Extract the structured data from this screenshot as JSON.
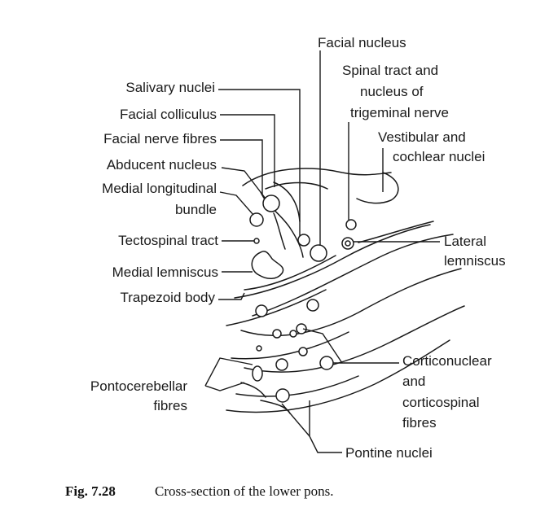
{
  "labels": {
    "facial_nucleus": "Facial nucleus",
    "spinal_tract_1": "Spinal tract and",
    "spinal_tract_2": "nucleus of",
    "spinal_tract_3": "trigeminal nerve",
    "vestibular_1": "Vestibular and",
    "vestibular_2": "cochlear nuclei",
    "salivary_nuclei": "Salivary nuclei",
    "facial_colliculus": "Facial colliculus",
    "facial_nerve_fibres": "Facial nerve fibres",
    "abducent_nucleus": "Abducent nucleus",
    "medial_longitudinal_1": "Medial longitudinal",
    "medial_longitudinal_2": "bundle",
    "tectospinal_tract": "Tectospinal tract",
    "medial_lemniscus": "Medial lemniscus",
    "trapezoid_body": "Trapezoid body",
    "lateral_lemniscus_1": "Lateral",
    "lateral_lemniscus_2": "lemniscus",
    "corticonuclear_1": "Corticonuclear",
    "corticonuclear_2": "and",
    "corticonuclear_3": "corticospinal",
    "corticonuclear_4": "fibres",
    "pontocerebellar_1": "Pontocerebellar",
    "pontocerebellar_2": "fibres",
    "pontine_nuclei": "Pontine nuclei"
  },
  "caption": {
    "number": "Fig. 7.28",
    "text": "Cross-section of the lower pons."
  }
}
